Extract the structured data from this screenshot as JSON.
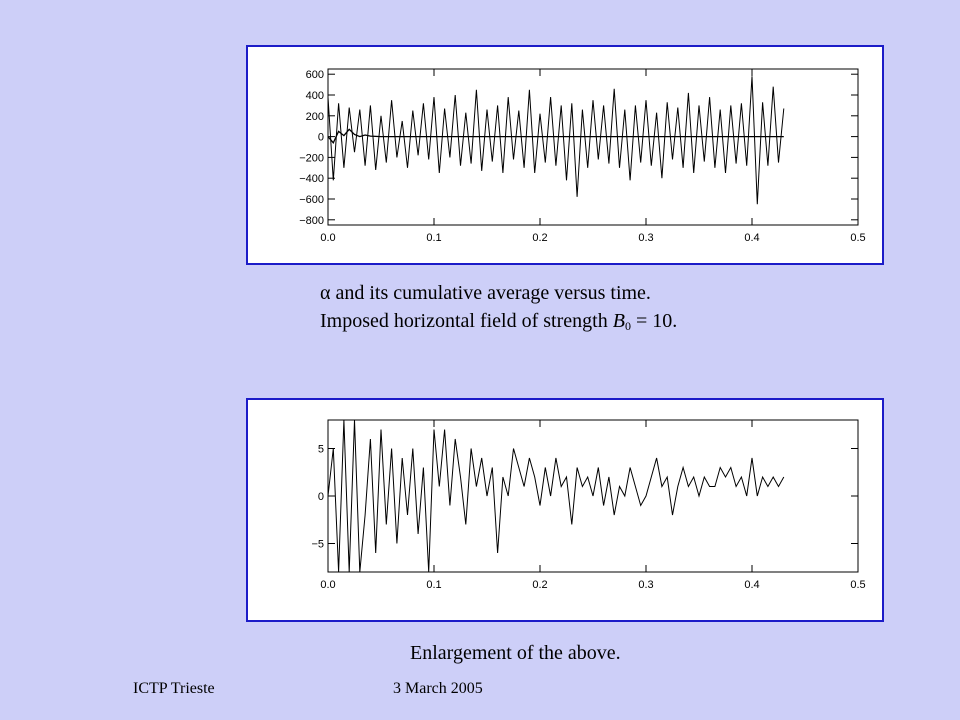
{
  "slide": {
    "caption_line1": "α and its cumulative average versus time.",
    "caption_line2_prefix": "Imposed horizontal field of strength ",
    "caption_line2_symbol": "B",
    "caption_line2_subscript": "0",
    "caption_line2_suffix": " = 10.",
    "caption_enlarge": "Enlargement of the above.",
    "footer_left": "ICTP Trieste",
    "footer_right": "3 March 2005"
  },
  "colors": {
    "background": "#cdcff8",
    "frame_border": "#1c1cc8",
    "plot_line": "#000000"
  },
  "chart_data": [
    {
      "type": "line",
      "title": "",
      "xlabel": "",
      "ylabel": "",
      "xlim": [
        0.0,
        0.5
      ],
      "ylim": [
        -850,
        650
      ],
      "x_ticks": [
        0.0,
        0.1,
        0.2,
        0.3,
        0.4,
        0.5
      ],
      "x_tick_labels": [
        "0.0",
        "0.1",
        "0.2",
        "0.3",
        "0.4",
        "0.5"
      ],
      "y_ticks": [
        600,
        400,
        200,
        0,
        -200,
        -400,
        -600,
        -800
      ],
      "y_tick_labels": [
        "600",
        "400",
        "200",
        "0",
        "−200",
        "−400",
        "−600",
        "−800"
      ],
      "grid": false,
      "series": [
        {
          "x": [
            0.0,
            0.005,
            0.01,
            0.015,
            0.02,
            0.025,
            0.03,
            0.035,
            0.04,
            0.045,
            0.05,
            0.055,
            0.06,
            0.065,
            0.07,
            0.075,
            0.08,
            0.085,
            0.09,
            0.095,
            0.1,
            0.105,
            0.11,
            0.115,
            0.12,
            0.125,
            0.13,
            0.135,
            0.14,
            0.145,
            0.15,
            0.155,
            0.16,
            0.165,
            0.17,
            0.175,
            0.18,
            0.185,
            0.19,
            0.195,
            0.2,
            0.205,
            0.21,
            0.215,
            0.22,
            0.225,
            0.23,
            0.235,
            0.24,
            0.245,
            0.25,
            0.255,
            0.26,
            0.265,
            0.27,
            0.275,
            0.28,
            0.285,
            0.29,
            0.295,
            0.3,
            0.305,
            0.31,
            0.315,
            0.32,
            0.325,
            0.33,
            0.335,
            0.34,
            0.345,
            0.35,
            0.355,
            0.36,
            0.365,
            0.37,
            0.375,
            0.38,
            0.385,
            0.39,
            0.395,
            0.4,
            0.405,
            0.41,
            0.415,
            0.42,
            0.425,
            0.43
          ],
          "y": [
            380,
            -420,
            320,
            -300,
            280,
            -150,
            260,
            -280,
            300,
            -320,
            200,
            -250,
            350,
            -200,
            150,
            -300,
            250,
            -180,
            320,
            -220,
            380,
            -350,
            270,
            -200,
            400,
            -280,
            230,
            -260,
            450,
            -330,
            260,
            -240,
            300,
            -350,
            380,
            -220,
            250,
            -300,
            450,
            -350,
            220,
            -250,
            380,
            -280,
            300,
            -420,
            320,
            -580,
            260,
            -300,
            350,
            -220,
            300,
            -260,
            460,
            -300,
            260,
            -420,
            300,
            -250,
            350,
            -280,
            230,
            -400,
            330,
            -220,
            280,
            -300,
            420,
            -350,
            300,
            -240,
            380,
            -300,
            260,
            -350,
            300,
            -260,
            320,
            -280,
            580,
            -650,
            330,
            -280,
            480,
            -250,
            270
          ]
        },
        {
          "name": "cumulative average",
          "x": [
            0.0,
            0.005,
            0.01,
            0.015,
            0.02,
            0.025,
            0.03,
            0.035,
            0.04,
            0.05,
            0.1,
            0.2,
            0.3,
            0.43
          ],
          "y": [
            0,
            -60,
            50,
            10,
            70,
            20,
            0,
            15,
            5,
            0,
            0,
            0,
            0,
            0
          ]
        }
      ]
    },
    {
      "type": "line",
      "title": "",
      "xlabel": "",
      "ylabel": "",
      "xlim": [
        0.0,
        0.5
      ],
      "ylim": [
        -8,
        8
      ],
      "x_ticks": [
        0.0,
        0.1,
        0.2,
        0.3,
        0.4,
        0.5
      ],
      "x_tick_labels": [
        "0.0",
        "0.1",
        "0.2",
        "0.3",
        "0.4",
        "0.5"
      ],
      "y_ticks": [
        5,
        0,
        -5
      ],
      "y_tick_labels": [
        "5",
        "0",
        "−5"
      ],
      "grid": false,
      "series": [
        {
          "x": [
            0.0,
            0.005,
            0.01,
            0.015,
            0.02,
            0.025,
            0.03,
            0.035,
            0.04,
            0.045,
            0.05,
            0.055,
            0.06,
            0.065,
            0.07,
            0.075,
            0.08,
            0.085,
            0.09,
            0.095,
            0.1,
            0.105,
            0.11,
            0.115,
            0.12,
            0.125,
            0.13,
            0.135,
            0.14,
            0.145,
            0.15,
            0.155,
            0.16,
            0.165,
            0.17,
            0.175,
            0.18,
            0.185,
            0.19,
            0.195,
            0.2,
            0.205,
            0.21,
            0.215,
            0.22,
            0.225,
            0.23,
            0.235,
            0.24,
            0.245,
            0.25,
            0.255,
            0.26,
            0.265,
            0.27,
            0.275,
            0.28,
            0.285,
            0.29,
            0.295,
            0.3,
            0.305,
            0.31,
            0.315,
            0.32,
            0.325,
            0.33,
            0.335,
            0.34,
            0.345,
            0.35,
            0.355,
            0.36,
            0.365,
            0.37,
            0.375,
            0.38,
            0.385,
            0.39,
            0.395,
            0.4,
            0.405,
            0.41,
            0.415,
            0.42,
            0.425,
            0.43
          ],
          "y": [
            0,
            5,
            -8,
            8,
            -8,
            8,
            -8,
            -2,
            6,
            -6,
            7,
            -3,
            5,
            -5,
            4,
            -2,
            5,
            -4,
            3,
            -8,
            7,
            1,
            7,
            -1,
            6,
            2,
            -3,
            5,
            1,
            4,
            0,
            3,
            -6,
            2,
            0,
            5,
            3,
            1,
            4,
            2,
            -1,
            3,
            0,
            4,
            1,
            2,
            -3,
            3,
            1,
            2,
            0,
            3,
            -1,
            2,
            -2,
            1,
            0,
            3,
            1,
            -1,
            0,
            2,
            4,
            1,
            2,
            -2,
            1,
            3,
            1,
            2,
            0,
            2,
            1,
            1,
            3,
            2,
            3,
            1,
            2,
            0,
            4,
            0,
            2,
            1,
            2,
            1,
            2
          ]
        }
      ]
    }
  ]
}
